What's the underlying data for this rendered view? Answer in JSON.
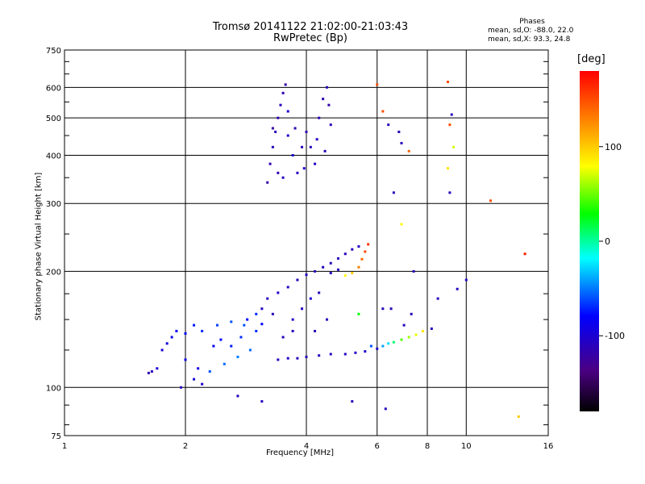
{
  "chart_data": {
    "type": "scatter",
    "title": "Tromsø 20141122 21:02:00-21:03:43",
    "subtitle": "RwPretec (Bp)",
    "xlabel": "Frequency [MHz]",
    "ylabel": "Stationary phase Virtual Height [km]",
    "x_scale": "log",
    "y_scale": "log",
    "xlim": [
      1,
      16
    ],
    "ylim": [
      75,
      750
    ],
    "xticks": [
      1,
      2,
      4,
      6,
      8,
      10,
      16
    ],
    "xtick_labels": [
      "1",
      "2",
      "4",
      "6",
      "8",
      "10",
      "16"
    ],
    "yticks": [
      75,
      100,
      200,
      300,
      400,
      500,
      600,
      750
    ],
    "ytick_labels": [
      "75",
      "100",
      "200",
      "300",
      "400",
      "500",
      "600",
      "750"
    ],
    "grid": true,
    "colorbar": {
      "label": "[deg]",
      "range": [
        -180,
        180
      ],
      "ticks": [
        100,
        0,
        -100
      ],
      "tick_labels": [
        "100",
        "0",
        "-100"
      ],
      "colors": [
        "#000000",
        "#4b0082",
        "#0000ff",
        "#00ffff",
        "#00ff00",
        "#ffff00",
        "#ff8000",
        "#ff0000"
      ]
    },
    "stats": {
      "header": "Phases",
      "line_o": "mean, sd,O: -88.0, 22.0",
      "line_x": "mean, sd,X:  93.3, 24.8"
    },
    "series": [
      {
        "values": [
          [
            1.62,
            109,
            -115
          ],
          [
            1.65,
            110,
            -110
          ],
          [
            1.7,
            112,
            -100
          ],
          [
            1.75,
            125,
            -100
          ],
          [
            1.8,
            130,
            -95
          ],
          [
            1.85,
            135,
            -90
          ],
          [
            1.9,
            140,
            -85
          ],
          [
            2.0,
            138,
            -80
          ],
          [
            2.1,
            145,
            -75
          ],
          [
            2.2,
            140,
            -70
          ],
          [
            2.4,
            145,
            -65
          ],
          [
            2.6,
            148,
            -60
          ],
          [
            2.8,
            145,
            -60
          ],
          [
            3.0,
            140,
            -70
          ],
          [
            2.3,
            110,
            -60
          ],
          [
            2.5,
            115,
            -55
          ],
          [
            2.7,
            120,
            -50
          ],
          [
            2.9,
            125,
            -55
          ],
          [
            2.0,
            118,
            -90
          ],
          [
            2.1,
            105,
            -100
          ],
          [
            1.95,
            100,
            -110
          ],
          [
            2.2,
            102,
            -105
          ],
          [
            2.15,
            112,
            -95
          ],
          [
            2.6,
            128,
            -75
          ],
          [
            2.45,
            133,
            -80
          ],
          [
            2.35,
            128,
            -85
          ],
          [
            2.75,
            135,
            -70
          ],
          [
            2.85,
            150,
            -80
          ],
          [
            3.0,
            155,
            -70
          ],
          [
            3.1,
            146,
            -80
          ]
        ]
      },
      {
        "values": [
          [
            3.4,
            118,
            -110
          ],
          [
            3.6,
            119,
            -110
          ],
          [
            3.8,
            119,
            -112
          ],
          [
            4.0,
            120,
            -110
          ],
          [
            4.3,
            121,
            -108
          ],
          [
            4.6,
            122,
            -108
          ],
          [
            5.0,
            122,
            -105
          ],
          [
            5.3,
            123,
            -105
          ],
          [
            5.6,
            124,
            -100
          ],
          [
            6.0,
            126,
            -100
          ],
          [
            5.8,
            128,
            -60
          ],
          [
            6.2,
            128,
            -40
          ],
          [
            6.4,
            130,
            -25
          ],
          [
            6.6,
            131,
            10
          ],
          [
            6.9,
            133,
            45
          ],
          [
            7.2,
            135,
            60
          ],
          [
            7.5,
            137,
            75
          ],
          [
            7.8,
            140,
            90
          ],
          [
            8.2,
            142,
            -110
          ],
          [
            7.0,
            145,
            -110
          ],
          [
            7.3,
            155,
            -110
          ],
          [
            6.5,
            160,
            -110
          ]
        ]
      },
      {
        "values": [
          [
            3.2,
            170,
            -110
          ],
          [
            3.4,
            176,
            -105
          ],
          [
            3.6,
            182,
            -108
          ],
          [
            3.8,
            190,
            -110
          ],
          [
            4.0,
            196,
            -110
          ],
          [
            4.2,
            200,
            -112
          ],
          [
            4.4,
            205,
            -110
          ],
          [
            4.6,
            210,
            -110
          ],
          [
            4.8,
            216,
            -110
          ],
          [
            5.0,
            222,
            -110
          ],
          [
            5.2,
            228,
            -110
          ],
          [
            5.4,
            232,
            -110
          ],
          [
            4.6,
            198,
            -110
          ],
          [
            4.8,
            202,
            -110
          ],
          [
            5.0,
            195,
            80
          ],
          [
            5.2,
            198,
            100
          ],
          [
            5.4,
            205,
            130
          ],
          [
            5.5,
            215,
            140
          ],
          [
            5.6,
            225,
            150
          ],
          [
            5.7,
            235,
            160
          ],
          [
            3.7,
            150,
            -105
          ],
          [
            3.9,
            160,
            -105
          ],
          [
            4.1,
            170,
            -100
          ],
          [
            4.3,
            176,
            -110
          ],
          [
            3.5,
            135,
            -110
          ],
          [
            3.7,
            140,
            -110
          ],
          [
            4.2,
            140,
            -110
          ],
          [
            4.5,
            150,
            -110
          ],
          [
            3.3,
            155,
            -110
          ],
          [
            3.1,
            160,
            -110
          ]
        ]
      },
      {
        "values": [
          [
            3.2,
            340,
            -120
          ],
          [
            3.25,
            380,
            -115
          ],
          [
            3.3,
            420,
            -110
          ],
          [
            3.35,
            460,
            -112
          ],
          [
            3.4,
            500,
            -115
          ],
          [
            3.45,
            540,
            -110
          ],
          [
            3.5,
            580,
            -115
          ],
          [
            3.55,
            610,
            -120
          ],
          [
            3.6,
            450,
            -105
          ],
          [
            3.7,
            400,
            -100
          ],
          [
            3.8,
            360,
            -110
          ],
          [
            3.9,
            420,
            -112
          ],
          [
            4.0,
            460,
            -115
          ],
          [
            4.1,
            420,
            -110
          ],
          [
            4.2,
            380,
            -108
          ],
          [
            4.3,
            500,
            -112
          ],
          [
            4.4,
            560,
            -115
          ],
          [
            4.5,
            600,
            -110
          ],
          [
            4.55,
            540,
            -118
          ],
          [
            4.6,
            480,
            -112
          ],
          [
            3.5,
            350,
            -110
          ],
          [
            3.6,
            520,
            -100
          ],
          [
            3.75,
            470,
            -115
          ],
          [
            3.95,
            370,
            -100
          ],
          [
            4.25,
            440,
            -105
          ],
          [
            4.45,
            410,
            -110
          ],
          [
            3.3,
            470,
            -120
          ],
          [
            3.4,
            360,
            -118
          ]
        ]
      },
      {
        "values": [
          [
            6.2,
            520,
            150
          ],
          [
            6.0,
            610,
            150
          ],
          [
            6.4,
            480,
            -110
          ],
          [
            6.8,
            460,
            -110
          ],
          [
            6.9,
            430,
            -110
          ],
          [
            7.2,
            410,
            140
          ],
          [
            9.0,
            620,
            150
          ],
          [
            9.2,
            510,
            -110
          ],
          [
            9.1,
            480,
            150
          ],
          [
            9.3,
            420,
            70
          ],
          [
            9.0,
            370,
            90
          ],
          [
            9.1,
            320,
            -110
          ],
          [
            11.5,
            305,
            150
          ],
          [
            14.0,
            222,
            170
          ],
          [
            13.5,
            84,
            100
          ],
          [
            10.0,
            190,
            -110
          ],
          [
            9.5,
            180,
            -110
          ],
          [
            8.5,
            170,
            -110
          ],
          [
            7.4,
            200,
            -110
          ],
          [
            6.6,
            320,
            -110
          ],
          [
            6.9,
            265,
            80
          ],
          [
            6.2,
            160,
            -110
          ],
          [
            5.4,
            155,
            30
          ],
          [
            5.2,
            92,
            -110
          ],
          [
            6.3,
            88,
            -110
          ],
          [
            3.1,
            92,
            -110
          ],
          [
            2.7,
            95,
            -110
          ]
        ]
      }
    ]
  }
}
